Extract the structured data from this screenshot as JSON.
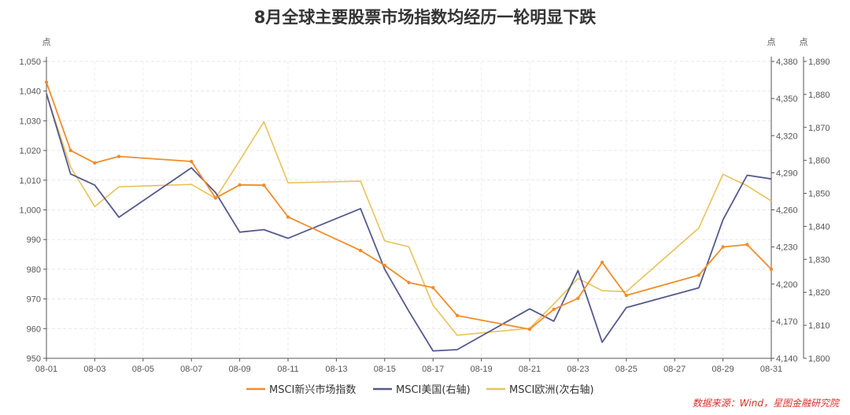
{
  "chart_data": {
    "type": "line",
    "title": "8月全球主要股票市场指数均经历一轮明显下跌",
    "source": "数据来源：Wind，星图金融研究院",
    "x": [
      "08-01",
      "08-02",
      "08-03",
      "08-04",
      "08-05",
      "08-06",
      "08-07",
      "08-08",
      "08-09",
      "08-10",
      "08-11",
      "08-12",
      "08-13",
      "08-14",
      "08-15",
      "08-16",
      "08-17",
      "08-18",
      "08-19",
      "08-20",
      "08-21",
      "08-22",
      "08-23",
      "08-24",
      "08-25",
      "08-26",
      "08-27",
      "08-28",
      "08-29",
      "08-30",
      "08-31"
    ],
    "x_tick_labels": [
      "08-01",
      "08-03",
      "08-05",
      "08-07",
      "08-09",
      "08-11",
      "08-13",
      "08-15",
      "08-17",
      "08-19",
      "08-21",
      "08-23",
      "08-25",
      "08-27",
      "08-29",
      "08-31"
    ],
    "axes": {
      "left": {
        "unit": "点",
        "min": 950,
        "max": 1050,
        "ticks": [
          "950",
          "960",
          "970",
          "980",
          "990",
          "1,000",
          "1,010",
          "1,020",
          "1,030",
          "1,040",
          "1,050"
        ]
      },
      "right": {
        "unit": "点",
        "min": 4140,
        "max": 4380,
        "ticks": [
          "4,140",
          "4,170",
          "4,200",
          "4,230",
          "4,260",
          "4,290",
          "4,320",
          "4,350",
          "4,380"
        ]
      },
      "right2": {
        "unit": "点",
        "min": 1800,
        "max": 1890,
        "ticks": [
          "1,800",
          "1,810",
          "1,820",
          "1,830",
          "1,840",
          "1,850",
          "1,860",
          "1,870",
          "1,880",
          "1,890"
        ]
      }
    },
    "series": [
      {
        "name": "MSCI新兴市场指数",
        "axis": "left",
        "color": "#F28C28",
        "markers": true,
        "points": [
          [
            "08-01",
            1043.0
          ],
          [
            "08-02",
            1020.0
          ],
          [
            "08-03",
            1015.8
          ],
          [
            "08-04",
            1018.0
          ],
          [
            "08-07",
            1016.3
          ],
          [
            "08-08",
            1004.0
          ],
          [
            "08-09",
            1008.4
          ],
          [
            "08-10",
            1008.3
          ],
          [
            "08-11",
            997.6
          ],
          [
            "08-14",
            986.3
          ],
          [
            "08-15",
            981.3
          ],
          [
            "08-16",
            975.5
          ],
          [
            "08-17",
            973.8
          ],
          [
            "08-18",
            964.4
          ],
          [
            "08-21",
            959.8
          ],
          [
            "08-22",
            966.5
          ],
          [
            "08-23",
            970.2
          ],
          [
            "08-24",
            982.3
          ],
          [
            "08-25",
            971.2
          ],
          [
            "08-28",
            978.0
          ],
          [
            "08-29",
            987.5
          ],
          [
            "08-30",
            988.3
          ],
          [
            "08-31",
            980.0
          ]
        ]
      },
      {
        "name": "MSCI美国(右轴)",
        "axis": "right",
        "color": "#55598C",
        "markers": false,
        "points": [
          [
            "08-01",
            4354
          ],
          [
            "08-02",
            4289
          ],
          [
            "08-03",
            4280
          ],
          [
            "08-04",
            4254
          ],
          [
            "08-07",
            4294
          ],
          [
            "08-08",
            4274
          ],
          [
            "08-09",
            4242
          ],
          [
            "08-10",
            4244
          ],
          [
            "08-11",
            4237
          ],
          [
            "08-14",
            4261
          ],
          [
            "08-15",
            4212
          ],
          [
            "08-16",
            4178
          ],
          [
            "08-17",
            4146
          ],
          [
            "08-18",
            4147
          ],
          [
            "08-21",
            4180
          ],
          [
            "08-22",
            4170
          ],
          [
            "08-23",
            4211
          ],
          [
            "08-24",
            4153
          ],
          [
            "08-25",
            4181
          ],
          [
            "08-28",
            4197
          ],
          [
            "08-29",
            4252
          ],
          [
            "08-30",
            4288
          ],
          [
            "08-31",
            4285
          ]
        ]
      },
      {
        "name": "MSCI欧洲(次右轴)",
        "axis": "right2",
        "color": "#E8C35A",
        "markers": false,
        "points": [
          [
            "08-01",
            1880
          ],
          [
            "08-02",
            1858
          ],
          [
            "08-03",
            1846
          ],
          [
            "08-04",
            1852
          ],
          [
            "08-07",
            1852.7
          ],
          [
            "08-08",
            1848.5
          ],
          [
            "08-09",
            1860
          ],
          [
            "08-10",
            1871.7
          ],
          [
            "08-11",
            1853.2
          ],
          [
            "08-14",
            1853.7
          ],
          [
            "08-15",
            1835.6
          ],
          [
            "08-16",
            1833.8
          ],
          [
            "08-17",
            1816.1
          ],
          [
            "08-18",
            1807
          ],
          [
            "08-21",
            1809.1
          ],
          [
            "08-22",
            1816.5
          ],
          [
            "08-23",
            1824.2
          ],
          [
            "08-24",
            1820.5
          ],
          [
            "08-25",
            1820.2
          ],
          [
            "08-28",
            1839.5
          ],
          [
            "08-29",
            1855.8
          ],
          [
            "08-30",
            1852.3
          ],
          [
            "08-31",
            1847.7
          ]
        ]
      }
    ],
    "grid": true,
    "legend_position": "bottom"
  }
}
